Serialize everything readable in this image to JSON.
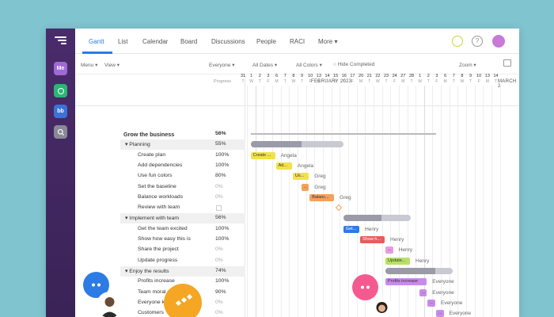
{
  "rail": {
    "items": [
      {
        "label": "Me",
        "color": "#a069d6"
      },
      {
        "label": "",
        "color": "#2bb673",
        "icon": "chat-icon"
      },
      {
        "label": "bb",
        "color": "#3b72d8"
      },
      {
        "label": "",
        "color": "#8a8a96",
        "icon": "search-icon"
      }
    ]
  },
  "tabs": [
    {
      "label": "Gantt"
    },
    {
      "label": "List"
    },
    {
      "label": "Calendar"
    },
    {
      "label": "Board"
    },
    {
      "label": "Discussions"
    },
    {
      "label": "People"
    },
    {
      "label": "RACI"
    },
    {
      "label": "More ▾"
    }
  ],
  "toolbar": {
    "menu": "Menu ▾",
    "view": "View ▾",
    "everyone": "Everyone ▾",
    "all_dates": "All Dates ▾",
    "all_colors": "All Colors ▾",
    "hide_completed": "Hide Completed",
    "zoom": "Zoom ▾"
  },
  "header": {
    "progress": "Progress",
    "month1": "FEBRUARY 2023",
    "month2": "MARCH 2"
  },
  "days": [
    "31",
    "1",
    "2",
    "3",
    "6",
    "7",
    "8",
    "9",
    "10",
    "13",
    "14",
    "15",
    "16",
    "17",
    "20",
    "21",
    "22",
    "23",
    "24",
    "27",
    "28",
    "1",
    "2",
    "3",
    "6",
    "7",
    "8",
    "9",
    "10",
    "13",
    "14"
  ],
  "dows": [
    "T",
    "W",
    "T",
    "F",
    "M",
    "T",
    "W",
    "T",
    "F",
    "M",
    "T",
    "W",
    "T",
    "F",
    "M",
    "T",
    "W",
    "T",
    "F",
    "M",
    "T",
    "W",
    "T",
    "F",
    "M",
    "T",
    "W",
    "T",
    "F",
    "M",
    "T"
  ],
  "tasks": [
    {
      "name": "Grow the business",
      "pct": "56%",
      "type": "project"
    },
    {
      "name": "▾  Planning",
      "pct": "55%",
      "type": "group"
    },
    {
      "name": "Create plan",
      "pct": "100%",
      "type": "task"
    },
    {
      "name": "Add dependencies",
      "pct": "100%",
      "type": "task"
    },
    {
      "name": "Use fun colors",
      "pct": "80%",
      "type": "task"
    },
    {
      "name": "Set the baseline",
      "pct": "0%",
      "type": "task",
      "muted": true
    },
    {
      "name": "Balance workloads",
      "pct": "0%",
      "type": "task",
      "muted": true
    },
    {
      "name": "Review with team",
      "pct": "",
      "type": "task"
    },
    {
      "name": "▾  Implement with team",
      "pct": "56%",
      "type": "group"
    },
    {
      "name": "Get the team excited",
      "pct": "100%",
      "type": "task"
    },
    {
      "name": "Show how easy this is",
      "pct": "100%",
      "type": "task"
    },
    {
      "name": "Share the project",
      "pct": "0%",
      "type": "task",
      "muted": true
    },
    {
      "name": "Update progress",
      "pct": "0%",
      "type": "task",
      "muted": true
    },
    {
      "name": "▾  Enjoy the results",
      "pct": "74%",
      "type": "group"
    },
    {
      "name": "Profits increase",
      "pct": "100%",
      "type": "task"
    },
    {
      "name": "Team moral goes up",
      "pct": "90%",
      "type": "task"
    },
    {
      "name": "Everyone kn",
      "pct": "0%",
      "type": "task",
      "muted": true
    },
    {
      "name": "Customers",
      "pct": "0%",
      "type": "task",
      "muted": true
    }
  ],
  "bars": [
    {
      "label": "Create ...",
      "assignee": "Angela",
      "color": "#f2e14a",
      "row": 2,
      "start": 0,
      "len": 3
    },
    {
      "label": "Ad...",
      "assignee": "Angela",
      "color": "#f2e14a",
      "row": 3,
      "start": 3,
      "len": 2
    },
    {
      "label": "Us...",
      "assignee": "Greg",
      "color": "#f2e14a",
      "row": 4,
      "start": 5,
      "len": 2
    },
    {
      "label": "...",
      "assignee": "Greg",
      "color": "#f6a15a",
      "row": 5,
      "start": 6,
      "len": 1
    },
    {
      "label": "Balanc...",
      "assignee": "Greg",
      "color": "#f6a15a",
      "row": 6,
      "start": 7,
      "len": 3
    },
    {
      "label": "Get...",
      "assignee": "Henry",
      "color": "#2d7be5",
      "row": 9,
      "start": 11,
      "len": 2
    },
    {
      "label": "Show h...",
      "assignee": "Henry",
      "color": "#e85c5c",
      "row": 10,
      "start": 13,
      "len": 3
    },
    {
      "label": "...",
      "assignee": "Henry",
      "color": "#e79be0",
      "row": 11,
      "start": 16,
      "len": 1
    },
    {
      "label": "Update...",
      "assignee": "Henry",
      "color": "#b8e068",
      "row": 12,
      "start": 16,
      "len": 3
    },
    {
      "label": "Profits increase",
      "assignee": "Everyone",
      "color": "#c98be8",
      "row": 14,
      "start": 16,
      "len": 5
    },
    {
      "label": "...",
      "assignee": "Everyone",
      "color": "#c98be8",
      "row": 15,
      "start": 20,
      "len": 1
    },
    {
      "label": "...",
      "assignee": "Everyone",
      "color": "#c98be8",
      "row": 16,
      "start": 21,
      "len": 1
    },
    {
      "label": "...",
      "assignee": "Everyone",
      "color": "#c98be8",
      "row": 17,
      "start": 22,
      "len": 1
    }
  ],
  "summaries": [
    {
      "row": 1,
      "start": 0,
      "len": 11,
      "progress": 0.55
    },
    {
      "row": 8,
      "start": 11,
      "len": 8,
      "progress": 0.56
    },
    {
      "row": 13,
      "start": 16,
      "len": 8,
      "progress": 0.74
    }
  ],
  "colors": {
    "accent": "#2d7be5",
    "rail": "#3a2356",
    "background": "#7fc4cf"
  }
}
